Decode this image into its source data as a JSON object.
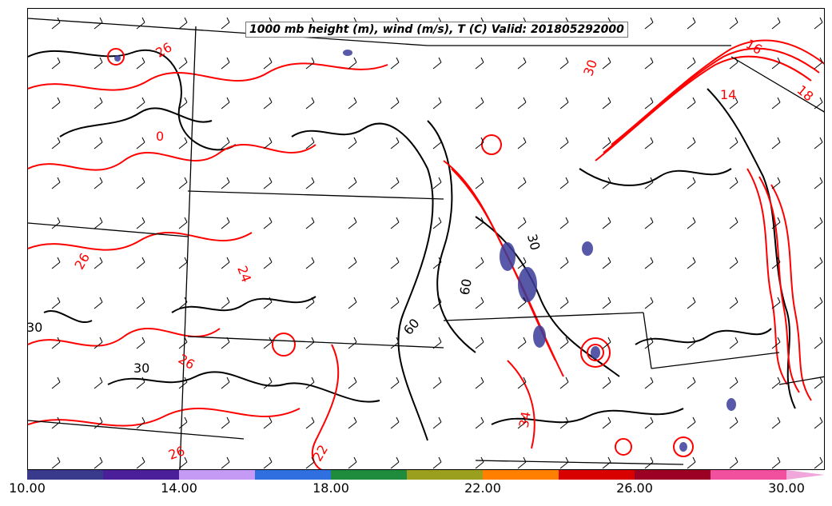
{
  "map": {
    "title": "1000 mb height (m), wind (m/s), T (C) Valid: 201805292000",
    "colors": {
      "temperature_contour": "#ff0000",
      "height_contour": "#000000",
      "state_borders": "#000000",
      "shaded_low": "#3c3c9a"
    },
    "temperature_labels": [
      {
        "text": "26",
        "color": "#ff0000"
      },
      {
        "text": "16",
        "color": "#ff0000"
      },
      {
        "text": "14",
        "color": "#ff0000"
      },
      {
        "text": "18",
        "color": "#ff0000"
      },
      {
        "text": "30",
        "color": "#ff0000"
      },
      {
        "text": "0",
        "color": "#ff0000"
      },
      {
        "text": "26",
        "color": "#ff0000"
      },
      {
        "text": "24",
        "color": "#ff0000"
      },
      {
        "text": "26",
        "color": "#ff0000"
      },
      {
        "text": "26",
        "color": "#ff0000"
      },
      {
        "text": "22",
        "color": "#ff0000"
      },
      {
        "text": "34",
        "color": "#ff0000"
      }
    ],
    "height_labels": [
      {
        "text": "30",
        "color": "#000000"
      },
      {
        "text": "30",
        "color": "#000000"
      },
      {
        "text": "60",
        "color": "#000000"
      },
      {
        "text": "60",
        "color": "#000000"
      },
      {
        "text": "30",
        "color": "#000000"
      }
    ]
  },
  "colorbar": {
    "colors": [
      "#3a3a8c",
      "#4b1f99",
      "#c59af5",
      "#2f6fe0",
      "#1e8c3c",
      "#9aa01e",
      "#ff8000",
      "#d90000",
      "#9c0024",
      "#f0509e",
      "#f1a7dc"
    ],
    "ticks": [
      "10.00",
      "14.00",
      "18.00",
      "22.00",
      "26.00",
      "30.00"
    ]
  }
}
